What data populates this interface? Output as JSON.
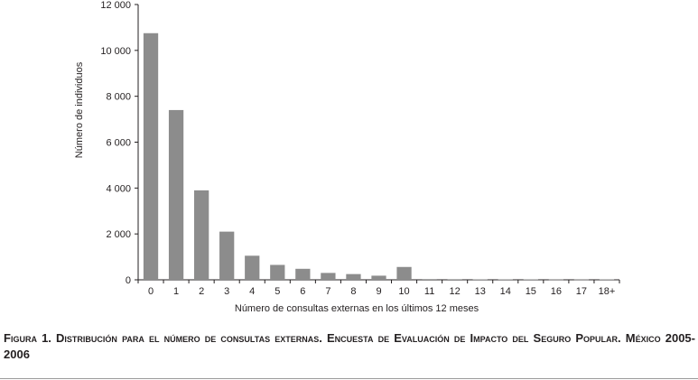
{
  "chart_data": {
    "type": "bar",
    "categories": [
      "0",
      "1",
      "2",
      "3",
      "4",
      "5",
      "6",
      "7",
      "8",
      "9",
      "10",
      "11",
      "12",
      "13",
      "14",
      "15",
      "16",
      "17",
      "18+"
    ],
    "values": [
      10750,
      7400,
      3900,
      2100,
      1050,
      650,
      480,
      300,
      250,
      180,
      560,
      30,
      25,
      20,
      20,
      20,
      15,
      15,
      20
    ],
    "xlabel": "Número de consultas externas en los últimos 12 meses",
    "ylabel": "Número de individuos",
    "ylim": [
      0,
      12000
    ],
    "yticks": [
      0,
      2000,
      4000,
      6000,
      8000,
      10000,
      12000
    ],
    "ytick_labels": [
      "0",
      "2 000",
      "4 000",
      "6 000",
      "8 000",
      "10 000",
      "12 000"
    ],
    "bar_color": "#8c8c8c",
    "grid": false
  },
  "caption": "Figura 1. Distribución para el número de consultas externas. Encuesta de Evaluación de Impacto del Seguro Popular. México 2005-2006"
}
